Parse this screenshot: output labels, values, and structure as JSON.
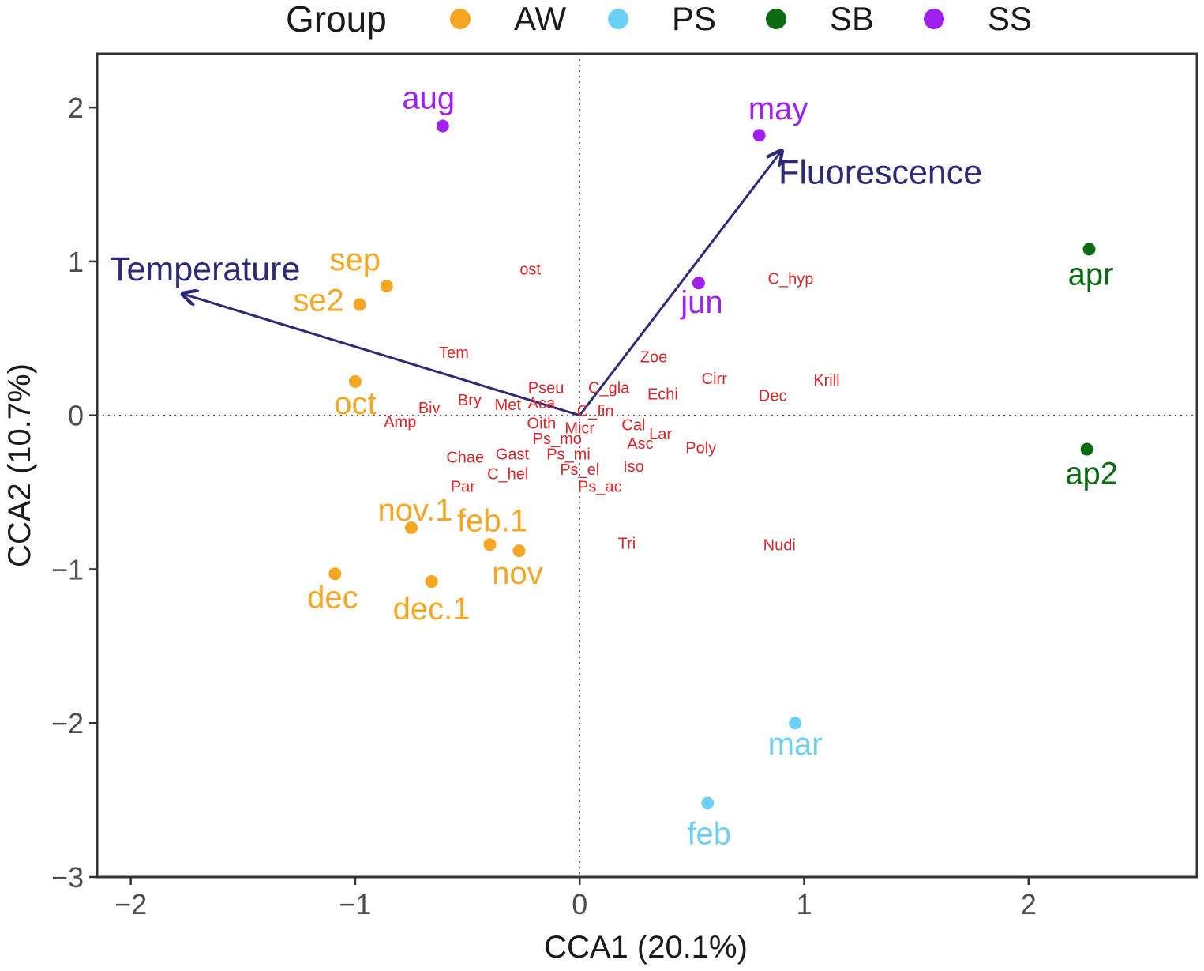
{
  "chart_data": {
    "type": "scatter",
    "title": "",
    "xlabel": "CCA1 (20.1%)",
    "ylabel": "CCA2 (10.7%)",
    "xlim": [
      -2.15,
      2.75
    ],
    "ylim": [
      -3.0,
      2.35
    ],
    "xticks": [
      {
        "value": -2,
        "label": "−2"
      },
      {
        "value": -1,
        "label": "−1"
      },
      {
        "value": 0,
        "label": "0"
      },
      {
        "value": 1,
        "label": "1"
      },
      {
        "value": 2,
        "label": "2"
      }
    ],
    "yticks": [
      {
        "value": -3,
        "label": "−3"
      },
      {
        "value": -2,
        "label": "−2"
      },
      {
        "value": -1,
        "label": "−1"
      },
      {
        "value": 0,
        "label": "0"
      },
      {
        "value": 1,
        "label": "1"
      },
      {
        "value": 2,
        "label": "2"
      }
    ],
    "reference_lines": {
      "x": 0,
      "y": 0,
      "style": "dotted"
    },
    "legend": {
      "title": "Group",
      "position": "top",
      "items": [
        {
          "name": "AW",
          "color": "#F5A623"
        },
        {
          "name": "PS",
          "color": "#6CD0F5"
        },
        {
          "name": "SB",
          "color": "#0B6B12"
        },
        {
          "name": "SS",
          "color": "#A020F0"
        }
      ]
    },
    "samples": [
      {
        "label": "aug",
        "group": "SS",
        "x": -0.61,
        "y": 1.88
      },
      {
        "label": "may",
        "group": "SS",
        "x": 0.8,
        "y": 1.82
      },
      {
        "label": "jun",
        "group": "SS",
        "x": 0.53,
        "y": 0.86
      },
      {
        "label": "sep",
        "group": "AW",
        "x": -0.86,
        "y": 0.84
      },
      {
        "label": "se2",
        "group": "AW",
        "x": -0.98,
        "y": 0.72
      },
      {
        "label": "oct",
        "group": "AW",
        "x": -1.0,
        "y": 0.22
      },
      {
        "label": "nov.1",
        "group": "AW",
        "x": -0.75,
        "y": -0.73
      },
      {
        "label": "feb.1",
        "group": "AW",
        "x": -0.4,
        "y": -0.84
      },
      {
        "label": "nov",
        "group": "AW",
        "x": -0.27,
        "y": -0.88
      },
      {
        "label": "dec",
        "group": "AW",
        "x": -1.09,
        "y": -1.03
      },
      {
        "label": "dec.1",
        "group": "AW",
        "x": -0.66,
        "y": -1.08
      },
      {
        "label": "apr",
        "group": "SB",
        "x": 2.27,
        "y": 1.08
      },
      {
        "label": "ap2",
        "group": "SB",
        "x": 2.26,
        "y": -0.22
      },
      {
        "label": "mar",
        "group": "PS",
        "x": 0.96,
        "y": -2.0
      },
      {
        "label": "feb",
        "group": "PS",
        "x": 0.57,
        "y": -2.52
      }
    ],
    "env_vectors": {
      "color": "#2E2A7A",
      "items": [
        {
          "label": "Temperature",
          "x": -1.77,
          "y": 0.79
        },
        {
          "label": "Fluorescence",
          "x": 0.9,
          "y": 1.72
        }
      ]
    },
    "species": {
      "color": "#D9262B",
      "items": [
        {
          "label": "ost",
          "x": -0.22,
          "y": 0.95
        },
        {
          "label": "C_hyp",
          "x": 0.94,
          "y": 0.89
        },
        {
          "label": "Tem",
          "x": -0.56,
          "y": 0.41
        },
        {
          "label": "Zoe",
          "x": 0.33,
          "y": 0.38
        },
        {
          "label": "Krill",
          "x": 1.1,
          "y": 0.23
        },
        {
          "label": "Cirr",
          "x": 0.6,
          "y": 0.24
        },
        {
          "label": "Pseu",
          "x": -0.15,
          "y": 0.18
        },
        {
          "label": "C_gla",
          "x": 0.13,
          "y": 0.18
        },
        {
          "label": "Echi",
          "x": 0.37,
          "y": 0.14
        },
        {
          "label": "Dec",
          "x": 0.86,
          "y": 0.13
        },
        {
          "label": "Bry",
          "x": -0.49,
          "y": 0.1
        },
        {
          "label": "Met",
          "x": -0.32,
          "y": 0.07
        },
        {
          "label": "Aca",
          "x": -0.17,
          "y": 0.08
        },
        {
          "label": "Biv",
          "x": -0.67,
          "y": 0.05
        },
        {
          "label": "C_fin",
          "x": 0.07,
          "y": 0.03
        },
        {
          "label": "Amp",
          "x": -0.8,
          "y": -0.04
        },
        {
          "label": "Oith",
          "x": -0.17,
          "y": -0.05
        },
        {
          "label": "Micr",
          "x": 0.0,
          "y": -0.08
        },
        {
          "label": "Cal",
          "x": 0.24,
          "y": -0.06
        },
        {
          "label": "Lar",
          "x": 0.36,
          "y": -0.12
        },
        {
          "label": "Ps_mo",
          "x": -0.1,
          "y": -0.15
        },
        {
          "label": "Asc",
          "x": 0.27,
          "y": -0.18
        },
        {
          "label": "Poly",
          "x": 0.54,
          "y": -0.21
        },
        {
          "label": "Chae",
          "x": -0.51,
          "y": -0.27
        },
        {
          "label": "Gast",
          "x": -0.3,
          "y": -0.25
        },
        {
          "label": "Ps_mi",
          "x": -0.05,
          "y": -0.25
        },
        {
          "label": "Iso",
          "x": 0.24,
          "y": -0.33
        },
        {
          "label": "Ps_el",
          "x": 0.0,
          "y": -0.35
        },
        {
          "label": "C_hel",
          "x": -0.32,
          "y": -0.38
        },
        {
          "label": "Par",
          "x": -0.52,
          "y": -0.46
        },
        {
          "label": "Ps_ac",
          "x": 0.09,
          "y": -0.46
        },
        {
          "label": "Tri",
          "x": 0.21,
          "y": -0.83
        },
        {
          "label": "Nudi",
          "x": 0.89,
          "y": -0.84
        }
      ]
    }
  }
}
